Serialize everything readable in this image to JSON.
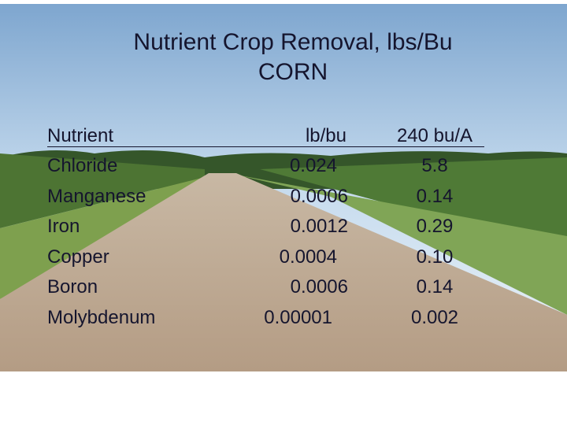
{
  "title": [
    "Nutrient Crop Removal, lbs/Bu",
    "CORN"
  ],
  "table": {
    "header": [
      "Nutrient",
      "lb/bu",
      "240 bu/A"
    ],
    "rows": [
      [
        "Chloride",
        "0.024",
        "5.8"
      ],
      [
        "Manganese",
        "0.0006",
        "0.14"
      ],
      [
        "Iron",
        "0.0012",
        "0.29"
      ],
      [
        "Copper",
        "0.0004",
        "0.10"
      ],
      [
        "Boron",
        "0.0006",
        "0.14"
      ],
      [
        "Molybdenum",
        "0.00001",
        "0.002"
      ]
    ]
  }
}
